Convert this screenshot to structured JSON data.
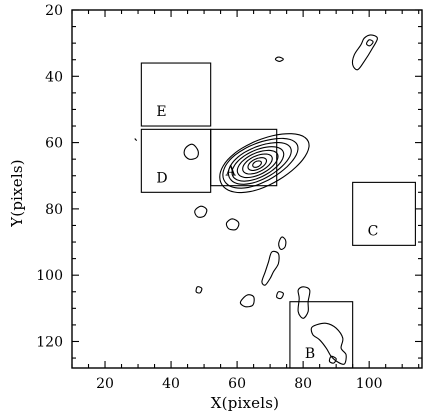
{
  "chart_data": {
    "type": "contour",
    "xlabel": "X(pixels)",
    "ylabel": "Y(pixels)",
    "xlim": [
      10,
      116
    ],
    "ylim": [
      20,
      128
    ],
    "y_inverted": true,
    "x_ticks": [
      20,
      40,
      60,
      80,
      100
    ],
    "y_ticks": [
      20,
      40,
      60,
      80,
      100,
      120
    ],
    "grid": false,
    "regions": [
      {
        "label": "A",
        "x": [
          52,
          72
        ],
        "y": [
          56,
          73
        ]
      },
      {
        "label": "B",
        "x": [
          76,
          95
        ],
        "y": [
          108,
          128
        ]
      },
      {
        "label": "C",
        "x": [
          95,
          114
        ],
        "y": [
          72,
          91
        ]
      },
      {
        "label": "D",
        "x": [
          31,
          52
        ],
        "y": [
          56,
          75
        ]
      },
      {
        "label": "E",
        "x": [
          31,
          52
        ],
        "y": [
          36,
          55
        ]
      }
    ],
    "peak": {
      "x": 66,
      "y": 67
    }
  }
}
